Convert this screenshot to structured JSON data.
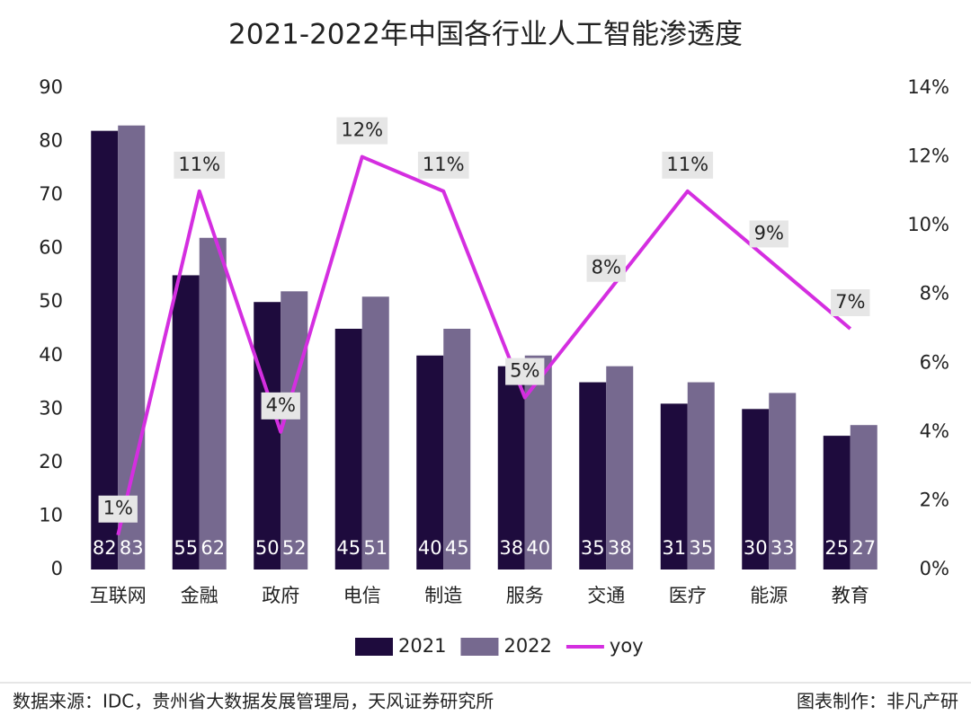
{
  "chart_data": {
    "type": "bar-line",
    "title": "2021-2022年中国各行业人工智能渗透度",
    "categories": [
      "互联网",
      "金融",
      "政府",
      "电信",
      "制造",
      "服务",
      "交通",
      "医疗",
      "能源",
      "教育"
    ],
    "series": [
      {
        "name": "2021",
        "type": "bar",
        "color": "#1e0b3d",
        "values": [
          82,
          55,
          50,
          45,
          40,
          38,
          35,
          31,
          30,
          25
        ]
      },
      {
        "name": "2022",
        "type": "bar",
        "color": "#76698f",
        "values": [
          83,
          62,
          52,
          51,
          45,
          40,
          38,
          35,
          33,
          27
        ]
      },
      {
        "name": "yoy",
        "type": "line",
        "axis": "y2",
        "color": "#d42ee0",
        "values": [
          1,
          11,
          4,
          12,
          11,
          5,
          8,
          11,
          9,
          7
        ],
        "value_labels": [
          "1%",
          "11%",
          "4%",
          "12%",
          "11%",
          "5%",
          "8%",
          "11%",
          "9%",
          "7%"
        ]
      }
    ],
    "ylim": [
      0,
      90
    ],
    "yticks": [
      0,
      10,
      20,
      30,
      40,
      50,
      60,
      70,
      80,
      90
    ],
    "y2lim": [
      0,
      14
    ],
    "y2ticks": [
      {
        "value": 0,
        "label": "0%"
      },
      {
        "value": 2,
        "label": "2%"
      },
      {
        "value": 4,
        "label": "4%"
      },
      {
        "value": 6,
        "label": "6%"
      },
      {
        "value": 8,
        "label": "8%"
      },
      {
        "value": 10,
        "label": "10%"
      },
      {
        "value": 12,
        "label": "12%"
      },
      {
        "value": 14,
        "label": "14%"
      }
    ],
    "grid": false,
    "legend": "bottom",
    "source": "数据来源：IDC，贵州省大数据发展管理局，天风证券研究所",
    "credit": "图表制作：非凡产研"
  }
}
